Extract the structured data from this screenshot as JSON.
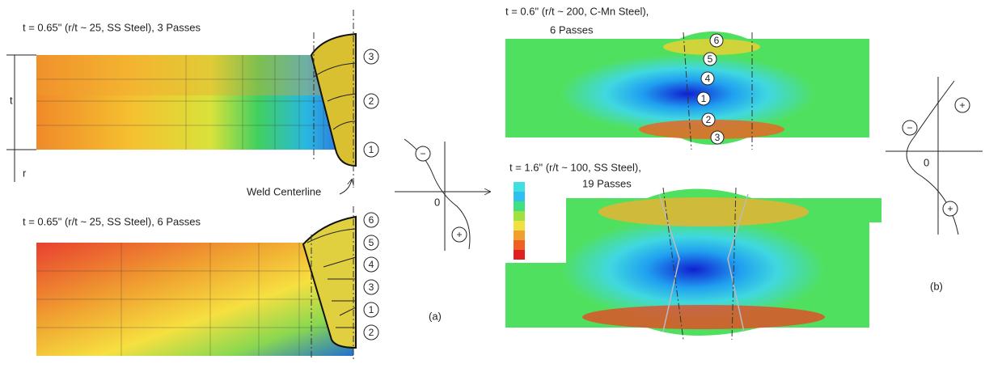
{
  "panel_a_top": {
    "title": "t = 0.65\" (r/t ~ 25, SS Steel), 3 Passes",
    "thickness_label": "t",
    "radius_label": "r",
    "passes": [
      "3",
      "2",
      "1"
    ],
    "centerline_label": "Weld Centerline"
  },
  "panel_a_bottom": {
    "title": "t = 0.65\" (r/t ~ 25, SS Steel), 6 Passes",
    "passes": [
      "6",
      "5",
      "4",
      "3",
      "1",
      "2"
    ]
  },
  "profile_a": {
    "minus": "−",
    "plus": "+",
    "origin": "0",
    "caption": "(a)"
  },
  "panel_b_top": {
    "title": "t = 0.6\" (r/t ~ 200, C-Mn Steel),",
    "subtitle": "6 Passes",
    "passes": [
      "6",
      "5",
      "4",
      "1",
      "2",
      "3"
    ]
  },
  "panel_b_bottom": {
    "title": "t = 1.6\" (r/t ~ 100, SS Steel),",
    "subtitle": "19 Passes"
  },
  "profile_b": {
    "minus": "−",
    "plus_top": "+",
    "plus_bottom": "+",
    "origin": "0",
    "caption": "(b)"
  }
}
